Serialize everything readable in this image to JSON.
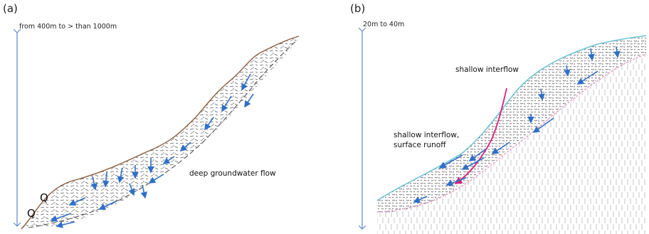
{
  "panel_a": {
    "letter": "(a)",
    "scale_label": "from 400m to > than 1000m",
    "flow_label": "deep groundwater flow",
    "q_upper": "Q",
    "q_lower": "Q"
  },
  "panel_b": {
    "letter": "(b)",
    "scale_label": "20m to 40m",
    "label_top": "shallow interflow",
    "label_mid_line1": "shallow interflow,",
    "label_mid_line2": "surface runoff"
  },
  "colors": {
    "arrow_blue": "#2f6fc8",
    "scale_blue": "#6b8fd0",
    "ground_brown": "#8a5a3a",
    "surface_cyan": "#69c3d6",
    "magenta": "#d6207e",
    "pink": "#e49ac4"
  },
  "icons": [
    "double-headed-scale-arrow",
    "flow-arrow",
    "sketched-regolith-texture"
  ]
}
